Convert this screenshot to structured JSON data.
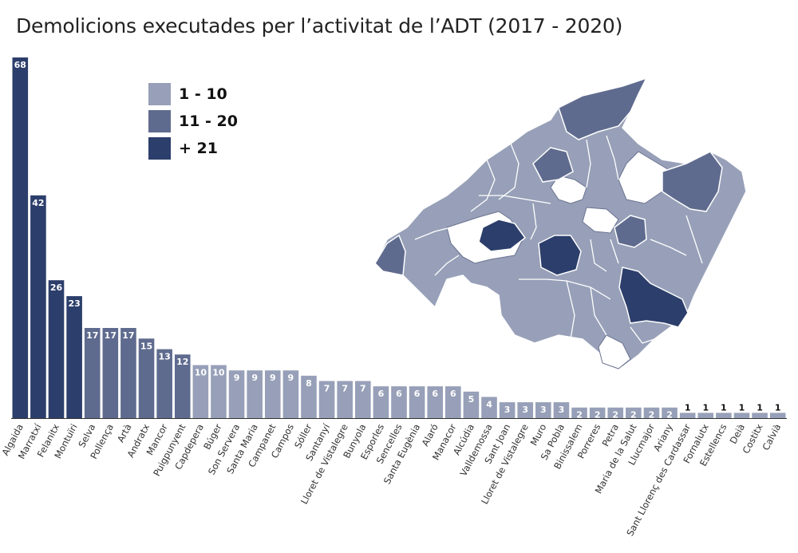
{
  "title": "Demolicions executades per l’activitat de l’ADT (2017 - 2020)",
  "legend": [
    {
      "label": "1 - 10",
      "color": "#97a0b8"
    },
    {
      "label": "11 - 20",
      "color": "#5f6b8e"
    },
    {
      "label": "+ 21",
      "color": "#2c3e6b"
    }
  ],
  "map": {
    "name": "Mallorca municipalities",
    "outline_color": "#ffffff",
    "no_data_color": "#ffffff"
  },
  "chart_data": {
    "type": "bar",
    "title": "Demolicions executades per l’activitat de l’ADT (2017 - 2020)",
    "xlabel": "",
    "ylabel": "",
    "ylim": [
      0,
      70
    ],
    "grid": false,
    "legend_position": "top-left",
    "categories": [
      "Algaida",
      "Marratxí",
      "Felanitx",
      "Montuïri",
      "Selva",
      "Pollença",
      "Artà",
      "Andratx",
      "Mancor",
      "Puigpunyent",
      "Capdepera",
      "Búger",
      "Son Servera",
      "Santa Maria",
      "Campanet",
      "Campos",
      "Sóller",
      "Santanyí",
      "Lloret de Vistalegre",
      "Bunyola",
      "Esporles",
      "Sencelles",
      "Santa Eugènia",
      "Alaró",
      "Manacor",
      "Alcúdia",
      "Valldemossa",
      "Sant Joan",
      "Lloret de Vistalegre",
      "Muro",
      "Sa Pobla",
      "Binissalem",
      "Porreres",
      "Petra",
      "Maria de la Salut",
      "Llucmajor",
      "Ariany",
      "Sant Llorenç des Cardassar",
      "Fornalutx",
      "Estellencs",
      "Deià",
      "Costitx",
      "Calvià"
    ],
    "values": [
      68,
      42,
      26,
      23,
      17,
      17,
      17,
      15,
      13,
      12,
      10,
      10,
      9,
      9,
      9,
      9,
      8,
      7,
      7,
      7,
      6,
      6,
      6,
      6,
      6,
      5,
      4,
      3,
      3,
      3,
      3,
      2,
      2,
      2,
      2,
      2,
      2,
      1,
      1,
      1,
      1,
      1,
      1
    ]
  }
}
